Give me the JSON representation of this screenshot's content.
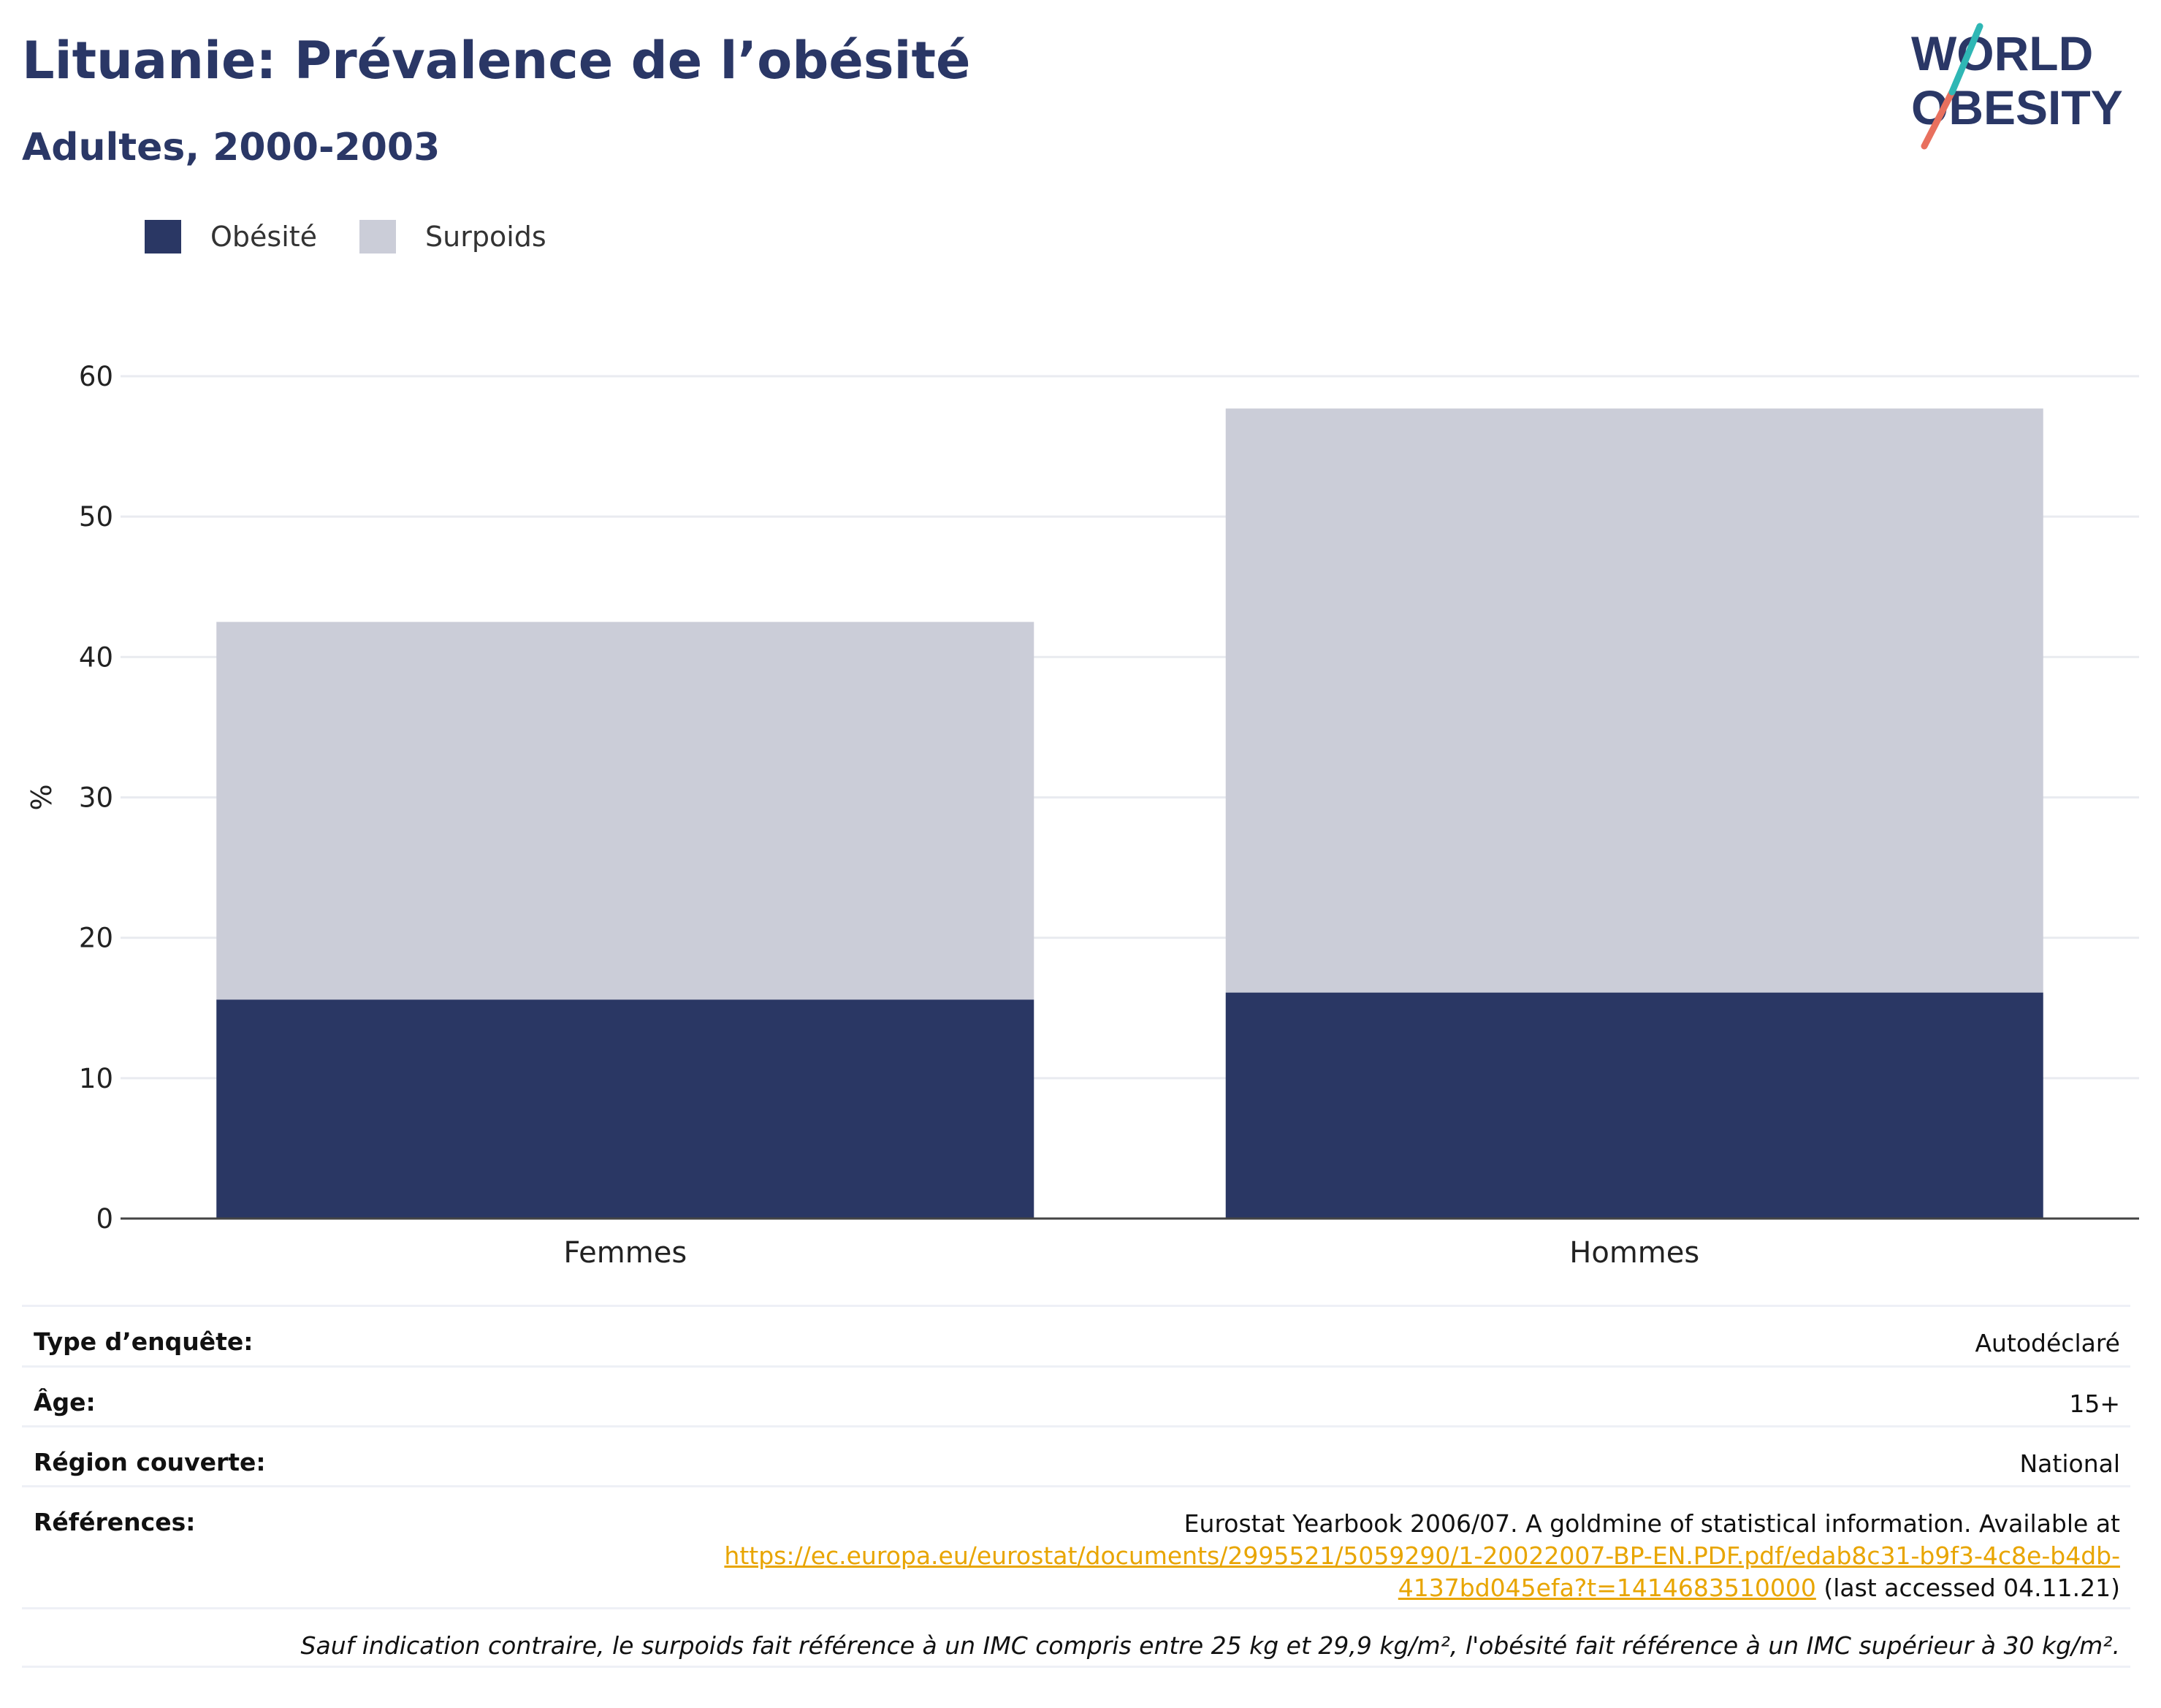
{
  "header": {
    "title": "Lituanie: Prévalence de l’obésité",
    "subtitle": "Adultes, 2000-2003"
  },
  "logo": {
    "line1": "WORLD",
    "line2": "OBESITY"
  },
  "colors": {
    "obesity": "#2a3764",
    "overweight": "#cbcdd8",
    "title": "#2a3766",
    "link": "#e8a500"
  },
  "chart_data": {
    "type": "bar",
    "stacked": true,
    "categories": [
      "Femmes",
      "Hommes"
    ],
    "series": [
      {
        "name": "Obésité",
        "values": [
          15.6,
          16.1
        ],
        "color": "#2a3764"
      },
      {
        "name": "Surpoids",
        "values": [
          26.9,
          41.6
        ],
        "color": "#cbcdd8"
      }
    ],
    "ylabel": "%",
    "ylim": [
      0,
      60
    ],
    "yticks": [
      0,
      10,
      20,
      30,
      40,
      50,
      60
    ],
    "grid": true,
    "legend": "top-left"
  },
  "info": {
    "survey_label": "Type d’enquête:",
    "survey_value": "Autodéclaré",
    "age_label": "Âge:",
    "age_value": "15+",
    "region_label": "Région couverte:",
    "region_value": "National",
    "ref_label": "Références:",
    "ref_text": "Eurostat Yearbook 2006/07. A goldmine of statistical information. Available at",
    "ref_link_1": "https://ec.europa.eu/eurostat/documents/2995521/5059290/1-20022007-BP-EN.PDF.pdf/edab8c31-b9f3-4c8e-b4db-",
    "ref_link_2": "4137bd045efa?t=1414683510000",
    "ref_suffix": " (last accessed 04.11.21)",
    "note": "Sauf indication contraire, le surpoids fait référence à un IMC compris entre 25 kg et 29,9 kg/m², l'obésité fait référence à un IMC supérieur à 30 kg/m²."
  }
}
